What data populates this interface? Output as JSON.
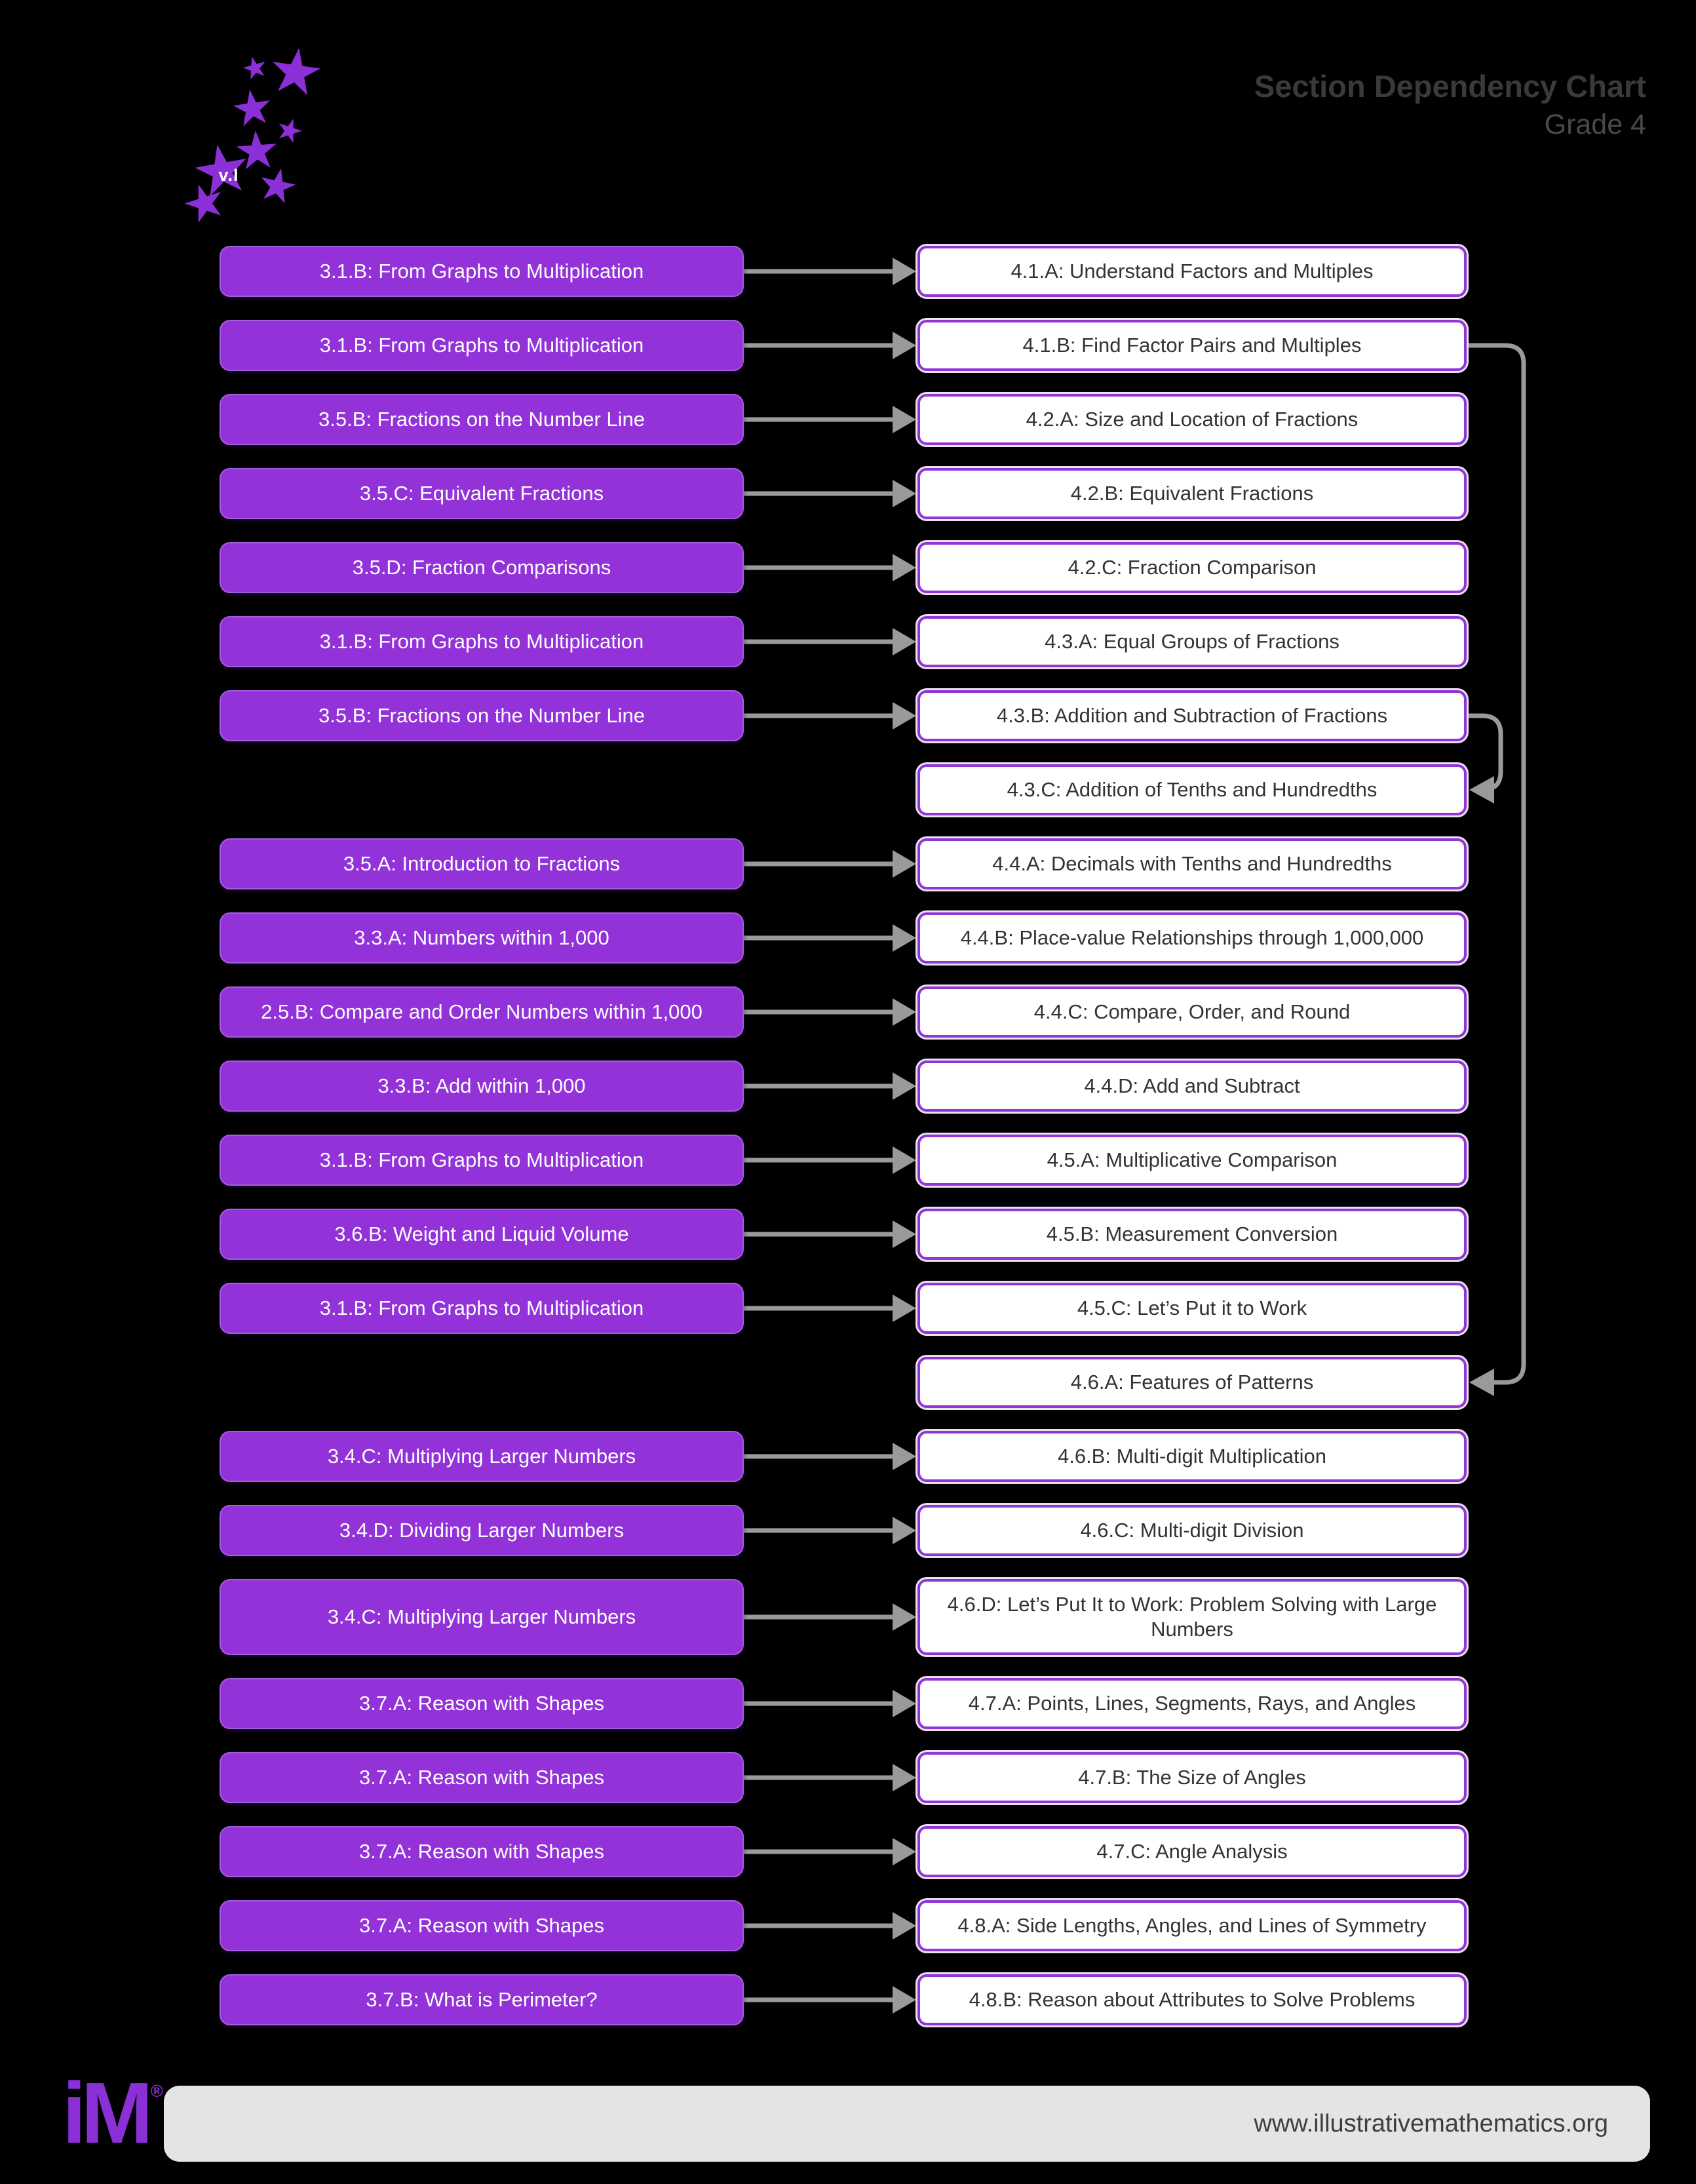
{
  "header": {
    "title": "Section Dependency Chart",
    "subtitle": "Grade 4",
    "logo_version_label": "v.I"
  },
  "icons": {
    "star_glyph": "★"
  },
  "colors": {
    "background": "#000000",
    "grade3_box_fill": "#9232d8",
    "grade4_box_border": "#9136d4",
    "grade4_box_fill": "#ffffff",
    "arrow_gray": "#9a9a9a",
    "title_gray": "#3a3a3c",
    "footer_bar_gray": "#e4e4e4"
  },
  "rows": [
    {
      "left": "3.1.B: From Graphs to Multiplication",
      "right": "4.1.A: Understand Factors and Multiples"
    },
    {
      "left": "3.1.B: From Graphs to Multiplication",
      "right": "4.1.B: Find Factor Pairs and Multiples"
    },
    {
      "left": "3.5.B: Fractions on the Number Line",
      "right": "4.2.A: Size and Location of Fractions"
    },
    {
      "left": "3.5.C: Equivalent Fractions",
      "right": "4.2.B: Equivalent Fractions"
    },
    {
      "left": "3.5.D: Fraction Comparisons",
      "right": "4.2.C: Fraction Comparison"
    },
    {
      "left": "3.1.B: From Graphs to Multiplication",
      "right": "4.3.A: Equal Groups of Fractions"
    },
    {
      "left": "3.5.B: Fractions on the Number Line",
      "right": "4.3.B: Addition and Subtraction of Fractions"
    },
    {
      "left": null,
      "right": "4.3.C: Addition of Tenths and Hundredths"
    },
    {
      "left": "3.5.A: Introduction to Fractions",
      "right": "4.4.A: Decimals with Tenths and Hundredths"
    },
    {
      "left": "3.3.A: Numbers within 1,000",
      "right": "4.4.B: Place-value Relationships through 1,000,000"
    },
    {
      "left": "2.5.B: Compare and Order Numbers within 1,000",
      "right": "4.4.C: Compare, Order, and Round"
    },
    {
      "left": "3.3.B: Add within 1,000",
      "right": "4.4.D: Add and Subtract"
    },
    {
      "left": "3.1.B: From Graphs to Multiplication",
      "right": "4.5.A: Multiplicative Comparison"
    },
    {
      "left": "3.6.B: Weight and Liquid Volume",
      "right": "4.5.B: Measurement Conversion"
    },
    {
      "left": "3.1.B: From Graphs to Multiplication",
      "right": "4.5.C: Let’s Put it to Work"
    },
    {
      "left": null,
      "right": "4.6.A: Features of Patterns"
    },
    {
      "left": "3.4.C: Multiplying Larger Numbers",
      "right": "4.6.B: Multi-digit Multiplication"
    },
    {
      "left": "3.4.D: Dividing Larger Numbers",
      "right": "4.6.C: Multi-digit Division"
    },
    {
      "left": "3.4.C: Multiplying Larger Numbers",
      "right": "4.6.D: Let’s Put It to Work: Problem Solving with Large Numbers",
      "tall": true
    },
    {
      "left": "3.7.A: Reason with Shapes",
      "right": "4.7.A: Points, Lines, Segments, Rays, and Angles"
    },
    {
      "left": "3.7.A: Reason with Shapes",
      "right": "4.7.B: The Size of Angles"
    },
    {
      "left": "3.7.A: Reason with Shapes",
      "right": "4.7.C: Angle Analysis"
    },
    {
      "left": "3.7.A: Reason with Shapes",
      "right": "4.8.A: Side Lengths, Angles, and Lines of Symmetry"
    },
    {
      "left": "3.7.B: What is Perimeter?",
      "right": "4.8.B: Reason about Attributes to Solve Problems"
    }
  ],
  "special_connectors": [
    {
      "from": "4.1.B",
      "to": "4.6.A"
    },
    {
      "from": "4.3.B",
      "to": "4.3.C"
    }
  ],
  "footer": {
    "url": "www.illustrativemathematics.org",
    "logo_text": "iM",
    "registered_mark": "®"
  }
}
